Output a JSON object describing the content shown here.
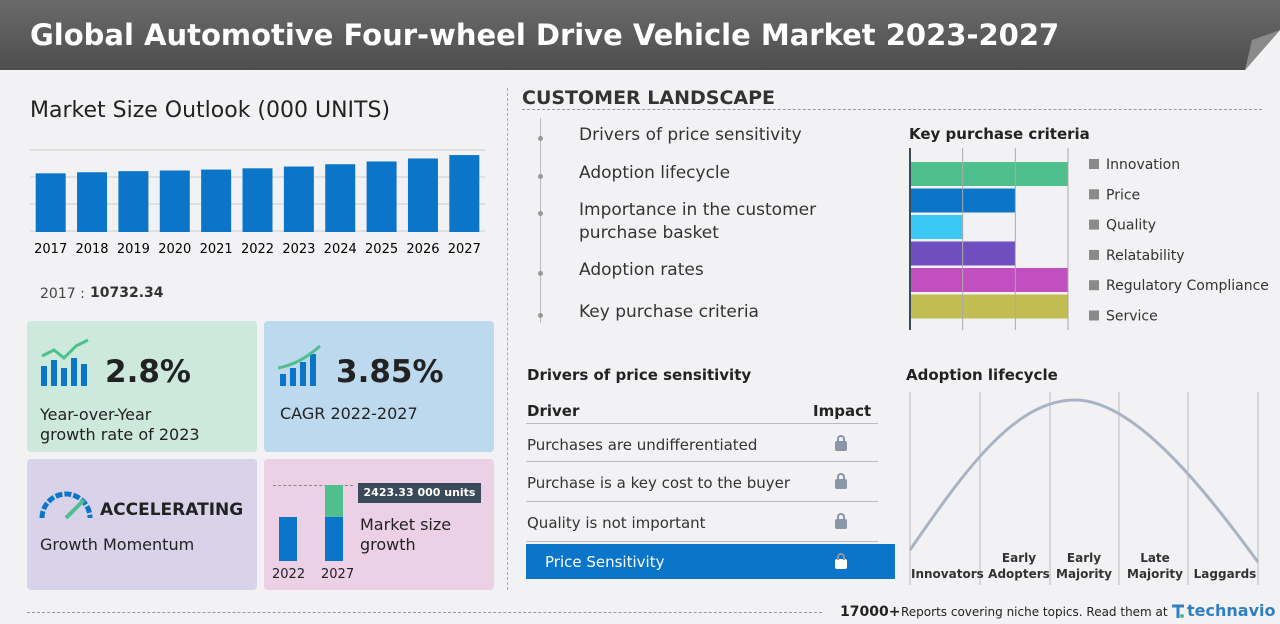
{
  "header": {
    "title": "Global Automotive Four-wheel Drive Vehicle Market 2023-2027"
  },
  "market_size": {
    "title": "Market Size Outlook (000 UNITS)",
    "chart_data": {
      "type": "bar",
      "categories": [
        "2017",
        "2018",
        "2019",
        "2020",
        "2021",
        "2022",
        "2023",
        "2024",
        "2025",
        "2026",
        "2027"
      ],
      "values": [
        10732.34,
        10930,
        11130,
        11250,
        11420,
        11650,
        11976,
        12400,
        12900,
        13450,
        14073
      ],
      "color": "#0a75c9",
      "ylim": [
        0,
        15000
      ]
    },
    "base_year_label": "2017 :",
    "base_year_value": "10732.34"
  },
  "cards": [
    {
      "value": "2.8%",
      "label": "Year-over-Year growth rate of 2023"
    },
    {
      "value": "3.85%",
      "label": "CAGR 2022-2027"
    },
    {
      "value": "ACCELERATING",
      "label": "Growth Momentum"
    },
    {
      "value": "2423.33 000 units",
      "label": "Market size growth",
      "years": [
        "2022",
        "2027"
      ]
    }
  ],
  "customer_landscape": {
    "title": "CUSTOMER LANDSCAPE",
    "items": [
      "Drivers of price sensitivity",
      "Adoption lifecycle",
      "Importance in the customer purchase basket",
      "Adoption rates",
      "Key purchase criteria"
    ]
  },
  "key_purchase_criteria": {
    "title": "Key purchase criteria",
    "chart_data": {
      "type": "hbar",
      "categories": [
        "Innovation",
        "Price",
        "Quality",
        "Relatability",
        "Regulatory Compliance",
        "Service"
      ],
      "values": [
        3,
        2,
        1,
        2,
        3,
        3
      ],
      "colors": [
        "#4fc08d",
        "#0a75c9",
        "#3cc8f5",
        "#6f4fbf",
        "#c24fbf",
        "#c2bd52"
      ],
      "xlim": [
        0,
        3
      ],
      "xticks": [
        0,
        1,
        2,
        3
      ]
    }
  },
  "drivers": {
    "title": "Drivers of price sensitivity",
    "columns": [
      "Driver",
      "Impact"
    ],
    "rows": [
      "Purchases are undifferentiated",
      "Purchase is a key cost to the buyer",
      "Quality is not important"
    ],
    "highlight": "Price Sensitivity"
  },
  "adoption": {
    "title": "Adoption lifecycle",
    "stages": [
      "Innovators",
      "Early Adopters",
      "Early Majority",
      "Late Majority",
      "Laggards"
    ]
  },
  "footer": {
    "count": "17000+",
    "text": "Reports covering niche topics. Read them at",
    "brand": "technavio"
  }
}
